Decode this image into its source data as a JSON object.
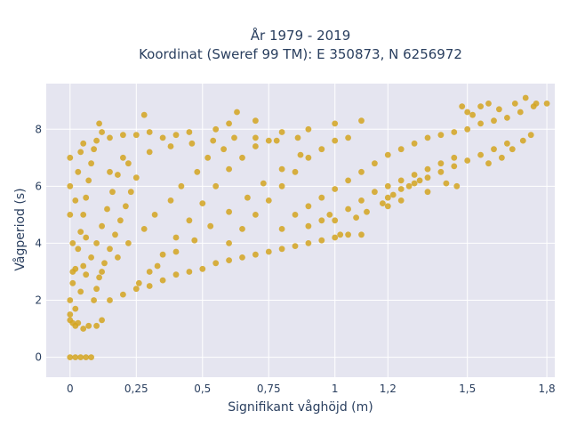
{
  "chart_data": {
    "type": "scatter",
    "title_line1": "År 1979 - 2019",
    "title_line2": "Koordinat (Sweref 99 TM): E 350873, N 6256972",
    "xlabel": "Signifikant våghöjd (m)",
    "ylabel": "Vågperiod (s)",
    "xlim": [
      -0.09,
      1.83
    ],
    "ylim": [
      -0.7,
      9.6
    ],
    "xticks": [
      {
        "value": 0,
        "label": "0"
      },
      {
        "value": 0.25,
        "label": "0,25"
      },
      {
        "value": 0.5,
        "label": "0,5"
      },
      {
        "value": 0.75,
        "label": "0,75"
      },
      {
        "value": 1,
        "label": "1"
      },
      {
        "value": 1.2,
        "label": "1,2"
      },
      {
        "value": 1.5,
        "label": "1,5"
      },
      {
        "value": 1.8,
        "label": "1,8"
      }
    ],
    "yticks": [
      {
        "value": 0,
        "label": "0"
      },
      {
        "value": 2,
        "label": "2"
      },
      {
        "value": 4,
        "label": "4"
      },
      {
        "value": 6,
        "label": "6"
      },
      {
        "value": 8,
        "label": "8"
      }
    ],
    "grid": true,
    "marker_color": "#D4A520",
    "plot_bg": "#E5E5F0",
    "series": [
      {
        "points": [
          [
            0.0,
            0
          ],
          [
            0.02,
            0
          ],
          [
            0.04,
            0
          ],
          [
            0.06,
            0
          ],
          [
            0.08,
            0
          ],
          [
            0.0,
            1.3
          ],
          [
            0.0,
            1.5
          ],
          [
            0.01,
            1.2
          ],
          [
            0.02,
            1.1
          ],
          [
            0.03,
            1.2
          ],
          [
            0.05,
            1.0
          ],
          [
            0.07,
            1.1
          ],
          [
            0.1,
            1.1
          ],
          [
            0.12,
            1.3
          ],
          [
            0.0,
            2.0
          ],
          [
            0.01,
            2.6
          ],
          [
            0.02,
            3.1
          ],
          [
            0.03,
            3.8
          ],
          [
            0.04,
            4.4
          ],
          [
            0.05,
            5.0
          ],
          [
            0.06,
            5.6
          ],
          [
            0.07,
            6.2
          ],
          [
            0.08,
            6.8
          ],
          [
            0.09,
            7.3
          ],
          [
            0.02,
            1.7
          ],
          [
            0.04,
            2.3
          ],
          [
            0.06,
            2.9
          ],
          [
            0.08,
            3.5
          ],
          [
            0.1,
            4.0
          ],
          [
            0.12,
            4.6
          ],
          [
            0.14,
            5.2
          ],
          [
            0.16,
            5.8
          ],
          [
            0.18,
            6.4
          ],
          [
            0.2,
            7.0
          ],
          [
            0.05,
            7.5
          ],
          [
            0.1,
            7.6
          ],
          [
            0.12,
            7.9
          ],
          [
            0.15,
            7.7
          ],
          [
            0.2,
            7.8
          ],
          [
            0.25,
            7.8
          ],
          [
            0.3,
            7.9
          ],
          [
            0.35,
            7.7
          ],
          [
            0.4,
            7.8
          ],
          [
            0.45,
            7.9
          ],
          [
            0.11,
            8.2
          ],
          [
            0.28,
            8.5
          ],
          [
            0.55,
            8.0
          ],
          [
            0.6,
            8.2
          ],
          [
            0.63,
            8.6
          ],
          [
            0.7,
            8.3
          ],
          [
            0.8,
            7.9
          ],
          [
            0.9,
            8.0
          ],
          [
            1.0,
            8.2
          ],
          [
            1.1,
            8.3
          ],
          [
            0.15,
            2.0
          ],
          [
            0.2,
            2.2
          ],
          [
            0.25,
            2.4
          ],
          [
            0.3,
            2.5
          ],
          [
            0.35,
            2.7
          ],
          [
            0.4,
            2.9
          ],
          [
            0.45,
            3.0
          ],
          [
            0.5,
            3.1
          ],
          [
            0.55,
            3.3
          ],
          [
            0.6,
            3.4
          ],
          [
            0.65,
            3.5
          ],
          [
            0.7,
            3.6
          ],
          [
            0.75,
            3.7
          ],
          [
            0.8,
            3.8
          ],
          [
            0.85,
            3.9
          ],
          [
            0.9,
            4.0
          ],
          [
            0.95,
            4.1
          ],
          [
            1.0,
            4.2
          ],
          [
            1.05,
            4.3
          ],
          [
            1.1,
            4.3
          ],
          [
            0.12,
            3.0
          ],
          [
            0.18,
            3.5
          ],
          [
            0.22,
            4.0
          ],
          [
            0.28,
            4.5
          ],
          [
            0.32,
            5.0
          ],
          [
            0.38,
            5.5
          ],
          [
            0.42,
            6.0
          ],
          [
            0.48,
            6.5
          ],
          [
            0.52,
            7.0
          ],
          [
            0.58,
            7.3
          ],
          [
            0.3,
            3.0
          ],
          [
            0.35,
            3.6
          ],
          [
            0.4,
            4.2
          ],
          [
            0.45,
            4.8
          ],
          [
            0.5,
            5.4
          ],
          [
            0.55,
            6.0
          ],
          [
            0.6,
            6.6
          ],
          [
            0.65,
            7.0
          ],
          [
            0.7,
            7.4
          ],
          [
            0.75,
            7.6
          ],
          [
            0.6,
            4.0
          ],
          [
            0.65,
            4.5
          ],
          [
            0.7,
            5.0
          ],
          [
            0.75,
            5.5
          ],
          [
            0.8,
            6.0
          ],
          [
            0.85,
            6.5
          ],
          [
            0.9,
            7.0
          ],
          [
            0.95,
            7.3
          ],
          [
            1.0,
            7.6
          ],
          [
            1.05,
            7.7
          ],
          [
            0.8,
            4.5
          ],
          [
            0.85,
            5.0
          ],
          [
            0.9,
            5.3
          ],
          [
            0.95,
            5.6
          ],
          [
            1.0,
            5.9
          ],
          [
            1.05,
            6.2
          ],
          [
            1.1,
            6.5
          ],
          [
            1.15,
            6.8
          ],
          [
            1.2,
            7.1
          ],
          [
            1.25,
            7.3
          ],
          [
            1.0,
            4.8
          ],
          [
            1.05,
            5.2
          ],
          [
            1.1,
            5.5
          ],
          [
            1.15,
            5.8
          ],
          [
            1.2,
            6.0
          ],
          [
            1.25,
            6.2
          ],
          [
            1.3,
            6.4
          ],
          [
            1.35,
            6.6
          ],
          [
            1.4,
            6.8
          ],
          [
            1.45,
            7.0
          ],
          [
            1.2,
            5.6
          ],
          [
            1.25,
            5.9
          ],
          [
            1.3,
            6.1
          ],
          [
            1.35,
            6.3
          ],
          [
            1.4,
            6.5
          ],
          [
            1.45,
            6.7
          ],
          [
            1.5,
            6.9
          ],
          [
            1.55,
            7.1
          ],
          [
            1.6,
            7.3
          ],
          [
            1.65,
            7.5
          ],
          [
            1.3,
            7.5
          ],
          [
            1.35,
            7.7
          ],
          [
            1.4,
            7.8
          ],
          [
            1.45,
            7.9
          ],
          [
            1.5,
            8.0
          ],
          [
            1.55,
            8.2
          ],
          [
            1.6,
            8.3
          ],
          [
            1.65,
            8.4
          ],
          [
            1.7,
            8.6
          ],
          [
            1.75,
            8.8
          ],
          [
            1.5,
            8.6
          ],
          [
            1.55,
            8.8
          ],
          [
            1.58,
            8.9
          ],
          [
            1.62,
            8.7
          ],
          [
            1.68,
            8.9
          ],
          [
            1.72,
            9.1
          ],
          [
            1.76,
            8.9
          ],
          [
            1.8,
            8.9
          ],
          [
            1.48,
            8.8
          ],
          [
            1.52,
            8.5
          ],
          [
            1.2,
            5.3
          ],
          [
            1.25,
            5.5
          ],
          [
            1.35,
            5.8
          ],
          [
            1.42,
            6.1
          ],
          [
            1.46,
            6.0
          ],
          [
            1.58,
            6.8
          ],
          [
            1.63,
            7.0
          ],
          [
            1.67,
            7.3
          ],
          [
            1.71,
            7.6
          ],
          [
            1.74,
            7.8
          ],
          [
            0.15,
            6.5
          ],
          [
            0.22,
            6.8
          ],
          [
            0.3,
            7.2
          ],
          [
            0.38,
            7.4
          ],
          [
            0.46,
            7.5
          ],
          [
            0.54,
            7.6
          ],
          [
            0.62,
            7.7
          ],
          [
            0.7,
            7.7
          ],
          [
            0.78,
            7.6
          ],
          [
            0.86,
            7.7
          ],
          [
            0.0,
            5.0
          ],
          [
            0.0,
            6.0
          ],
          [
            0.0,
            7.0
          ],
          [
            0.01,
            4.0
          ],
          [
            0.01,
            3.0
          ],
          [
            0.02,
            5.5
          ],
          [
            0.03,
            6.5
          ],
          [
            0.04,
            7.2
          ],
          [
            0.05,
            3.2
          ],
          [
            0.06,
            4.2
          ],
          [
            0.09,
            2.0
          ],
          [
            0.1,
            2.4
          ],
          [
            0.11,
            2.8
          ],
          [
            0.13,
            3.3
          ],
          [
            0.15,
            3.8
          ],
          [
            0.17,
            4.3
          ],
          [
            0.19,
            4.8
          ],
          [
            0.21,
            5.3
          ],
          [
            0.23,
            5.8
          ],
          [
            0.25,
            6.3
          ],
          [
            0.26,
            2.6
          ],
          [
            0.33,
            3.2
          ],
          [
            0.4,
            3.7
          ],
          [
            0.47,
            4.1
          ],
          [
            0.53,
            4.6
          ],
          [
            0.6,
            5.1
          ],
          [
            0.67,
            5.6
          ],
          [
            0.73,
            6.1
          ],
          [
            0.8,
            6.6
          ],
          [
            0.87,
            7.1
          ],
          [
            0.9,
            4.6
          ],
          [
            0.95,
            4.8
          ],
          [
            0.98,
            5.0
          ],
          [
            1.02,
            4.3
          ],
          [
            1.08,
            4.9
          ],
          [
            1.12,
            5.1
          ],
          [
            1.18,
            5.4
          ],
          [
            1.22,
            5.7
          ],
          [
            1.28,
            6.0
          ],
          [
            1.32,
            6.2
          ]
        ]
      }
    ]
  }
}
